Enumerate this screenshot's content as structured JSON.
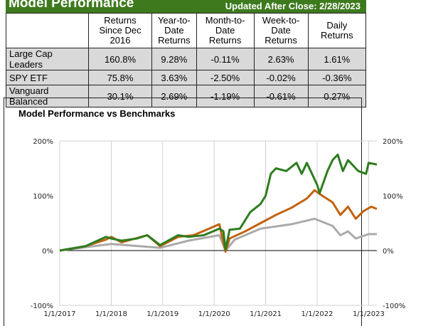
{
  "header": {
    "title": "Model Performance",
    "updated": "Updated After Close:  2/28/2023"
  },
  "table": {
    "columns": [
      "",
      "Returns Since Dec 2016",
      "Year-to-Date Returns",
      "Month-to-Date Returns",
      "Week-to-Date Returns",
      "Daily Returns"
    ],
    "rows": [
      [
        "Large Cap Leaders",
        "160.8%",
        "9.28%",
        "-0.11%",
        "2.63%",
        "1.61%"
      ],
      [
        "SPY ETF",
        "75.8%",
        "3.63%",
        "-2.50%",
        "-0.02%",
        "-0.36%"
      ],
      [
        "Vanguard Balanced",
        "30.1%",
        "2.69%",
        "-1.19%",
        "-0.61%",
        "0.27%"
      ]
    ]
  },
  "chart_data": {
    "type": "line",
    "title": "Model Performance vs Benchmarks",
    "xlim": [
      2017,
      2023.16
    ],
    "ylim": [
      -100,
      200
    ],
    "x_tick_labels": [
      "1/1/2017",
      "1/1/2018",
      "1/1/2019",
      "1/1/2020",
      "1/1/2021",
      "1/1/2022",
      "1/1/2023"
    ],
    "y_tick_labels": [
      "200%",
      "100%",
      "0%",
      "-100%"
    ],
    "y_ticks": [
      200,
      100,
      0,
      -100
    ],
    "grid": "vertical",
    "series": [
      {
        "color": "#2e7d1f",
        "points": [
          [
            2017,
            0
          ],
          [
            2017.5,
            8
          ],
          [
            2017.9,
            25
          ],
          [
            2018,
            22
          ],
          [
            2018.2,
            18
          ],
          [
            2018.5,
            22
          ],
          [
            2018.7,
            28
          ],
          [
            2018.95,
            10
          ],
          [
            2019.3,
            28
          ],
          [
            2019.5,
            25
          ],
          [
            2019.8,
            28
          ],
          [
            2020.1,
            40
          ],
          [
            2020.18,
            35
          ],
          [
            2020.22,
            2
          ],
          [
            2020.3,
            38
          ],
          [
            2020.5,
            40
          ],
          [
            2020.7,
            70
          ],
          [
            2020.9,
            85
          ],
          [
            2021,
            100
          ],
          [
            2021.1,
            140
          ],
          [
            2021.2,
            150
          ],
          [
            2021.4,
            145
          ],
          [
            2021.6,
            160
          ],
          [
            2021.7,
            140
          ],
          [
            2021.8,
            160
          ],
          [
            2022,
            120
          ],
          [
            2022.05,
            105
          ],
          [
            2022.2,
            145
          ],
          [
            2022.3,
            165
          ],
          [
            2022.4,
            175
          ],
          [
            2022.5,
            145
          ],
          [
            2022.6,
            165
          ],
          [
            2022.8,
            145
          ],
          [
            2022.95,
            140
          ],
          [
            2023,
            160
          ],
          [
            2023.16,
            157
          ]
        ]
      },
      {
        "color": "#c0620f",
        "points": [
          [
            2017,
            0
          ],
          [
            2017.5,
            8
          ],
          [
            2017.9,
            20
          ],
          [
            2018,
            25
          ],
          [
            2018.2,
            15
          ],
          [
            2018.7,
            28
          ],
          [
            2018.95,
            8
          ],
          [
            2019.3,
            25
          ],
          [
            2019.6,
            28
          ],
          [
            2019.9,
            40
          ],
          [
            2020.1,
            48
          ],
          [
            2020.22,
            -2
          ],
          [
            2020.3,
            22
          ],
          [
            2020.6,
            35
          ],
          [
            2020.9,
            50
          ],
          [
            2021.2,
            65
          ],
          [
            2021.5,
            78
          ],
          [
            2021.8,
            95
          ],
          [
            2021.95,
            110
          ],
          [
            2022.1,
            100
          ],
          [
            2022.3,
            88
          ],
          [
            2022.45,
            65
          ],
          [
            2022.6,
            80
          ],
          [
            2022.75,
            58
          ],
          [
            2022.9,
            72
          ],
          [
            2023.05,
            80
          ],
          [
            2023.16,
            76
          ]
        ]
      },
      {
        "color": "#aaaaaa",
        "points": [
          [
            2017,
            0
          ],
          [
            2018,
            12
          ],
          [
            2018.95,
            5
          ],
          [
            2019.5,
            18
          ],
          [
            2020.1,
            28
          ],
          [
            2020.22,
            0
          ],
          [
            2020.4,
            20
          ],
          [
            2020.9,
            40
          ],
          [
            2021.5,
            48
          ],
          [
            2021.95,
            58
          ],
          [
            2022.3,
            45
          ],
          [
            2022.45,
            28
          ],
          [
            2022.6,
            35
          ],
          [
            2022.75,
            22
          ],
          [
            2023,
            30
          ],
          [
            2023.16,
            30
          ]
        ]
      }
    ]
  }
}
